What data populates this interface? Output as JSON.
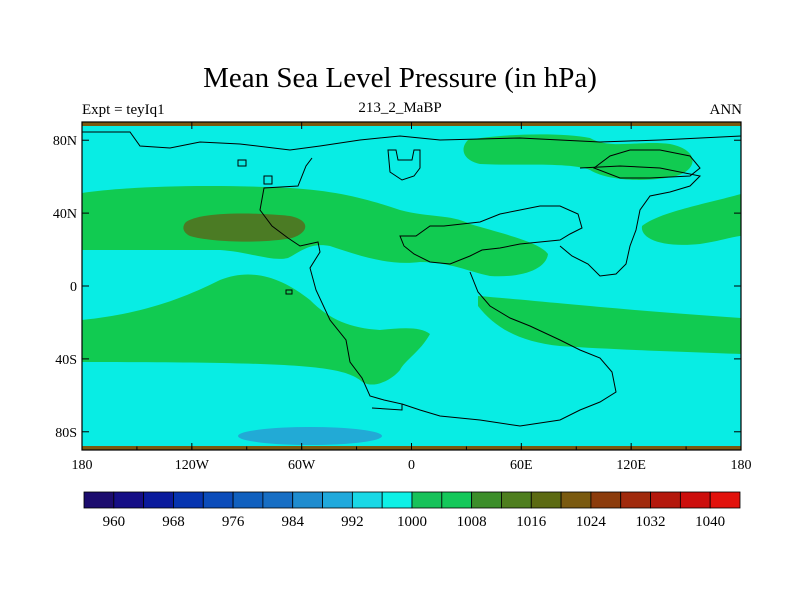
{
  "chart_data": {
    "type": "heatmap",
    "title": "Mean Sea Level Pressure (in hPa)",
    "left_string": "Expt = teyIq1",
    "center_string": "213_2_MaBP",
    "right_string": "ANN",
    "x_ticks": [
      "180",
      "120W",
      "60W",
      "0",
      "60E",
      "120E",
      "180"
    ],
    "y_ticks": [
      "80N",
      "40N",
      "0",
      "40S",
      "80S"
    ],
    "x_range": [
      -180,
      180
    ],
    "y_range": [
      -90,
      90
    ],
    "colorbar": {
      "levels": [
        960,
        964,
        968,
        972,
        976,
        980,
        984,
        988,
        992,
        996,
        1000,
        1004,
        1008,
        1012,
        1016,
        1020,
        1024,
        1028,
        1032,
        1036,
        1040
      ],
      "labels": [
        "960",
        "968",
        "976",
        "984",
        "992",
        "1000",
        "1008",
        "1016",
        "1024",
        "1032",
        "1040"
      ],
      "colors": [
        "#1c0c6e",
        "#150e86",
        "#0a1a9c",
        "#0634b0",
        "#0b4cba",
        "#1060bf",
        "#176ec4",
        "#1f8ccf",
        "#20a9dc",
        "#19d8e6",
        "#0ef0e6",
        "#17c25a",
        "#14c85a",
        "#3c8e2a",
        "#4e7e1e",
        "#5c6a12",
        "#7a5a10",
        "#8c3c0c",
        "#a02a0c",
        "#b4180c",
        "#cc0e0c",
        "#e2120c"
      ]
    },
    "regions": [
      {
        "name": "background",
        "range": "1000-1004",
        "color": "#08ede4"
      },
      {
        "name": "northern-subtropical-high-band",
        "range": "1008-1012",
        "color": "#11cb51"
      },
      {
        "name": "southern-subtropical-high-band",
        "range": "1008-1012",
        "color": "#11cb51"
      },
      {
        "name": "north-pacific-high-core",
        "range": "1012-1016",
        "color": "#4b7b24"
      },
      {
        "name": "antarctic-low",
        "range": "996-1000",
        "color": "#22aad6"
      },
      {
        "name": "arctic-high",
        "range": "1008-1012",
        "color": "#11cb51"
      },
      {
        "name": "polar-high-edges",
        "range": "1020-1024",
        "color": "#7a5a10"
      }
    ]
  }
}
